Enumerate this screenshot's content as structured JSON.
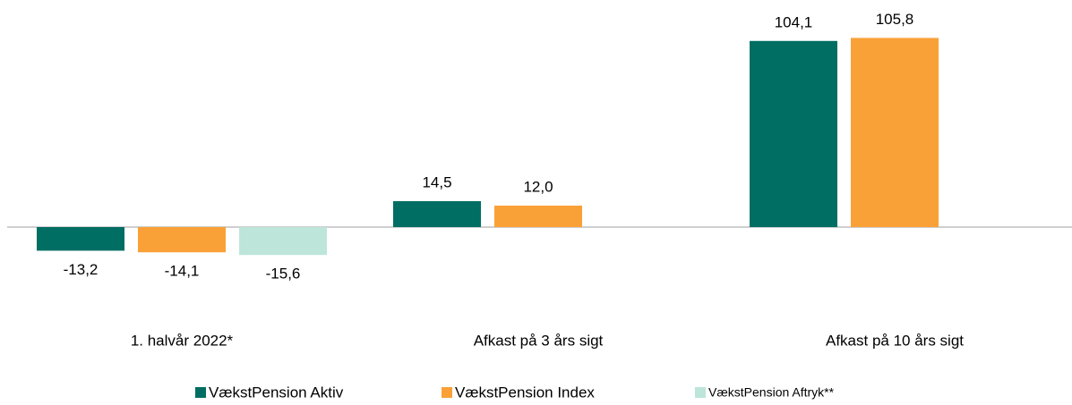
{
  "chart_data": {
    "type": "bar",
    "categories": [
      "1. halvår 2022*",
      "Afkast på 3 års sigt",
      "Afkast på 10 års sigt"
    ],
    "series": [
      {
        "name": "VækstPension Aktiv",
        "color": "#006e63",
        "values": [
          -13.2,
          14.5,
          104.1
        ],
        "value_labels": [
          "-13,2",
          "14,5",
          "104,1"
        ]
      },
      {
        "name": "VækstPension Index",
        "color": "#f9a137",
        "values": [
          -14.1,
          12.0,
          105.8
        ],
        "value_labels": [
          "-14,1",
          "12,0",
          "105,8"
        ]
      },
      {
        "name": "VækstPension Aftryk**",
        "color": "#bde5da",
        "values": [
          -15.6,
          null,
          null
        ],
        "value_labels": [
          "-15,6",
          null,
          null
        ]
      }
    ],
    "ylim": [
      -20,
      110
    ]
  }
}
